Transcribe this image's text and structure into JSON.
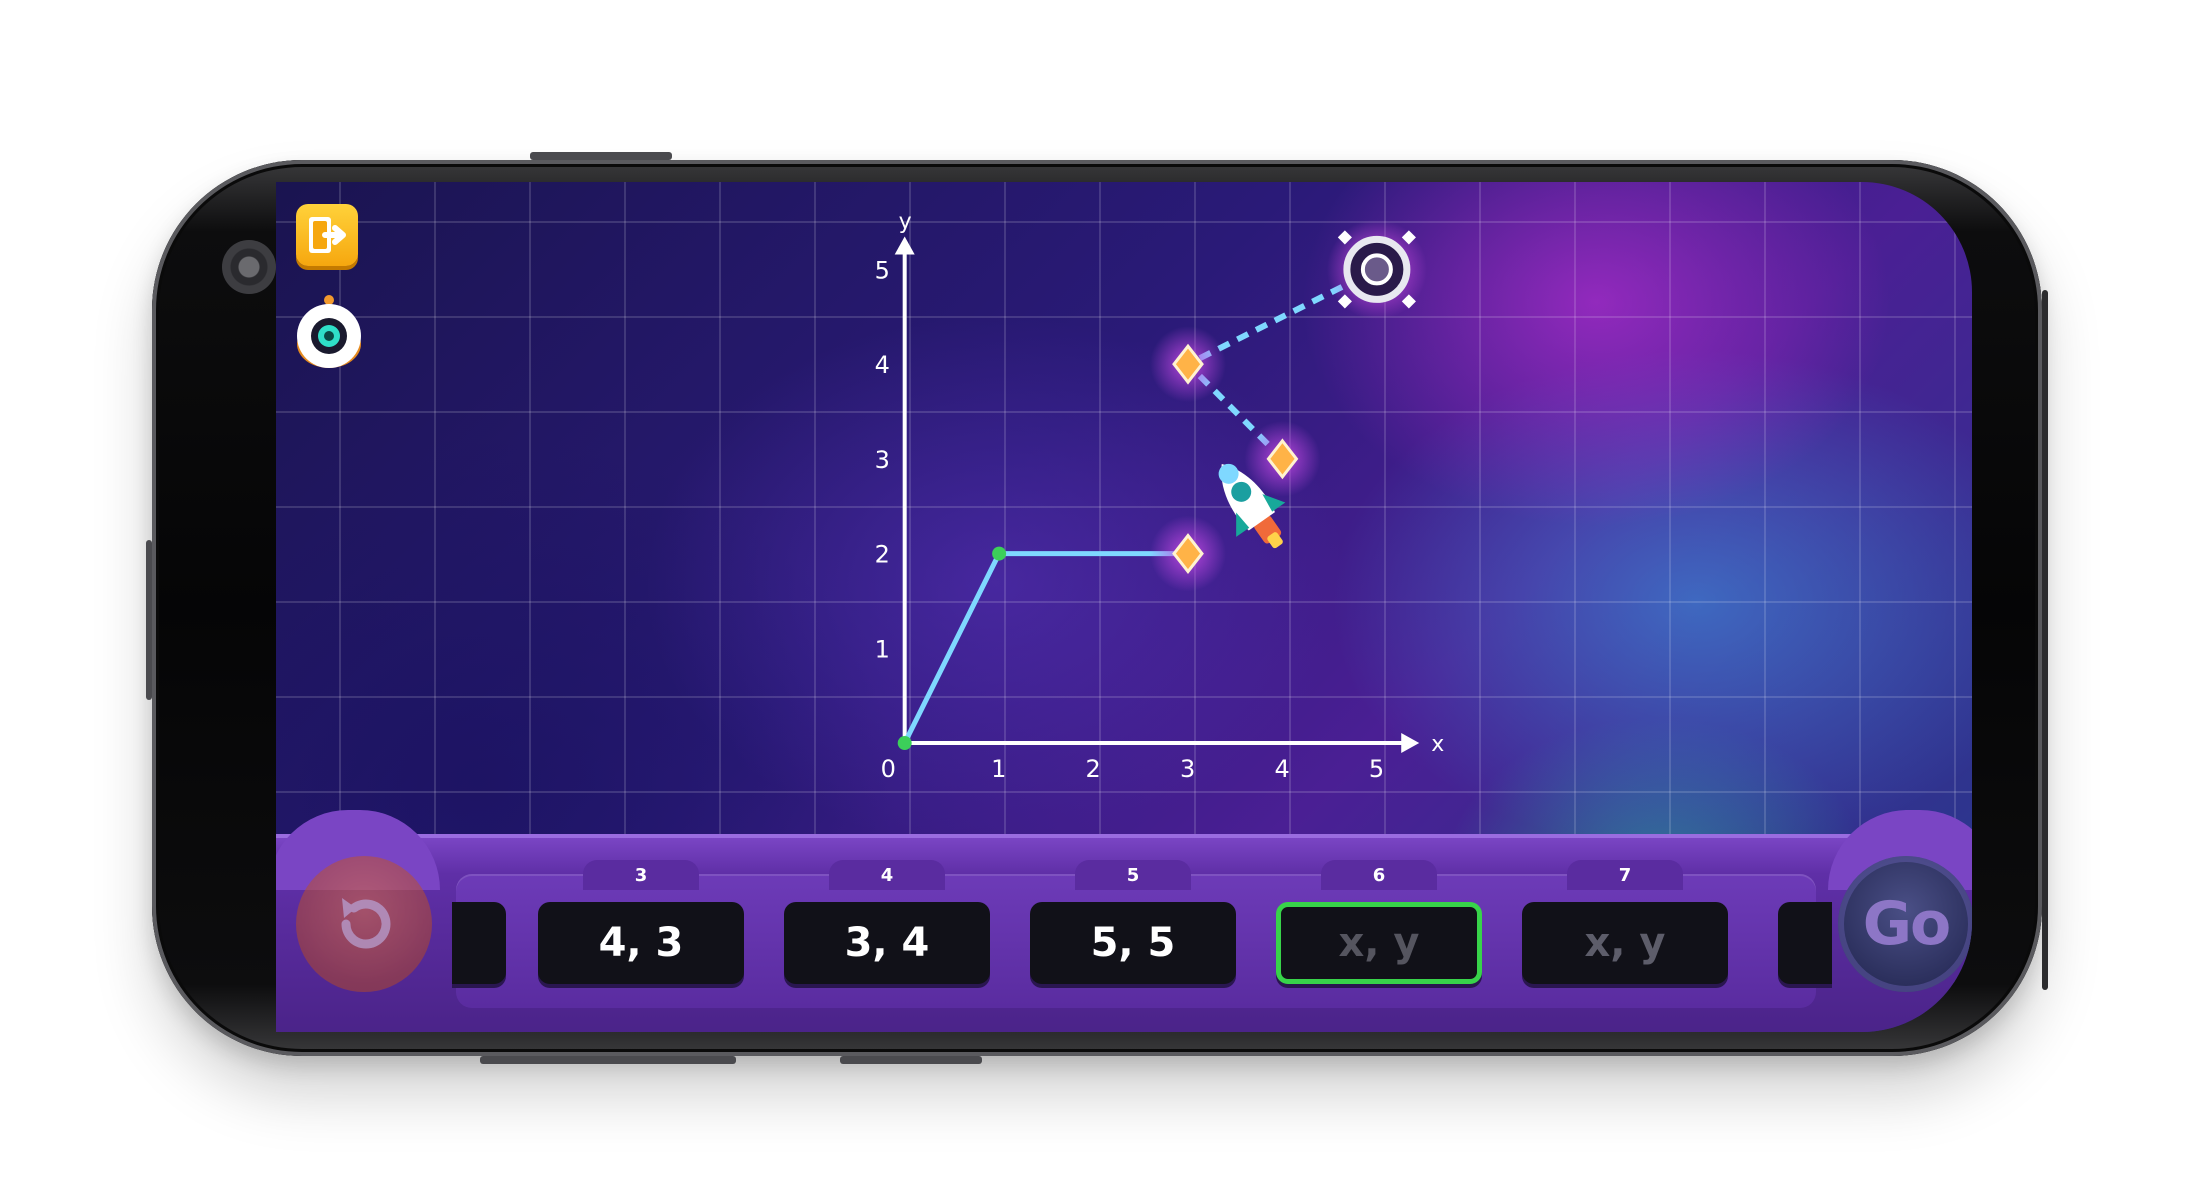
{
  "game": {
    "exit_icon": "exit-door-icon",
    "robot_icon": "robot-helper-icon",
    "reset_icon": "reset-arrow-icon",
    "go_label": "Go"
  },
  "graph": {
    "x_axis_label": "x",
    "y_axis_label": "y",
    "x_ticks": [
      "0",
      "1",
      "2",
      "3",
      "4",
      "5"
    ],
    "y_ticks": [
      "1",
      "2",
      "3",
      "4",
      "5"
    ],
    "path_solid": [
      [
        0,
        0
      ],
      [
        1,
        2
      ],
      [
        3,
        2
      ]
    ],
    "path_dashed": [
      [
        4,
        3
      ],
      [
        3,
        4
      ],
      [
        5,
        5
      ]
    ],
    "star_points": [
      [
        3,
        2
      ],
      [
        4,
        3
      ],
      [
        3,
        4
      ]
    ],
    "portal_point": [
      5,
      5
    ],
    "ship_point": [
      3.6,
      2.6
    ],
    "path_color": "#7fd8ff",
    "node_color": "#3ccf5a",
    "star_color": "#ffb347"
  },
  "steps": [
    {
      "num": "",
      "value": "",
      "state": "partial"
    },
    {
      "num": "3",
      "value": "4, 3",
      "state": "filled"
    },
    {
      "num": "4",
      "value": "3, 4",
      "state": "filled"
    },
    {
      "num": "5",
      "value": "5, 5",
      "state": "filled"
    },
    {
      "num": "6",
      "value": "x, y",
      "state": "active"
    },
    {
      "num": "7",
      "value": "x, y",
      "state": "empty"
    },
    {
      "num": "",
      "value": "",
      "state": "partial"
    }
  ]
}
